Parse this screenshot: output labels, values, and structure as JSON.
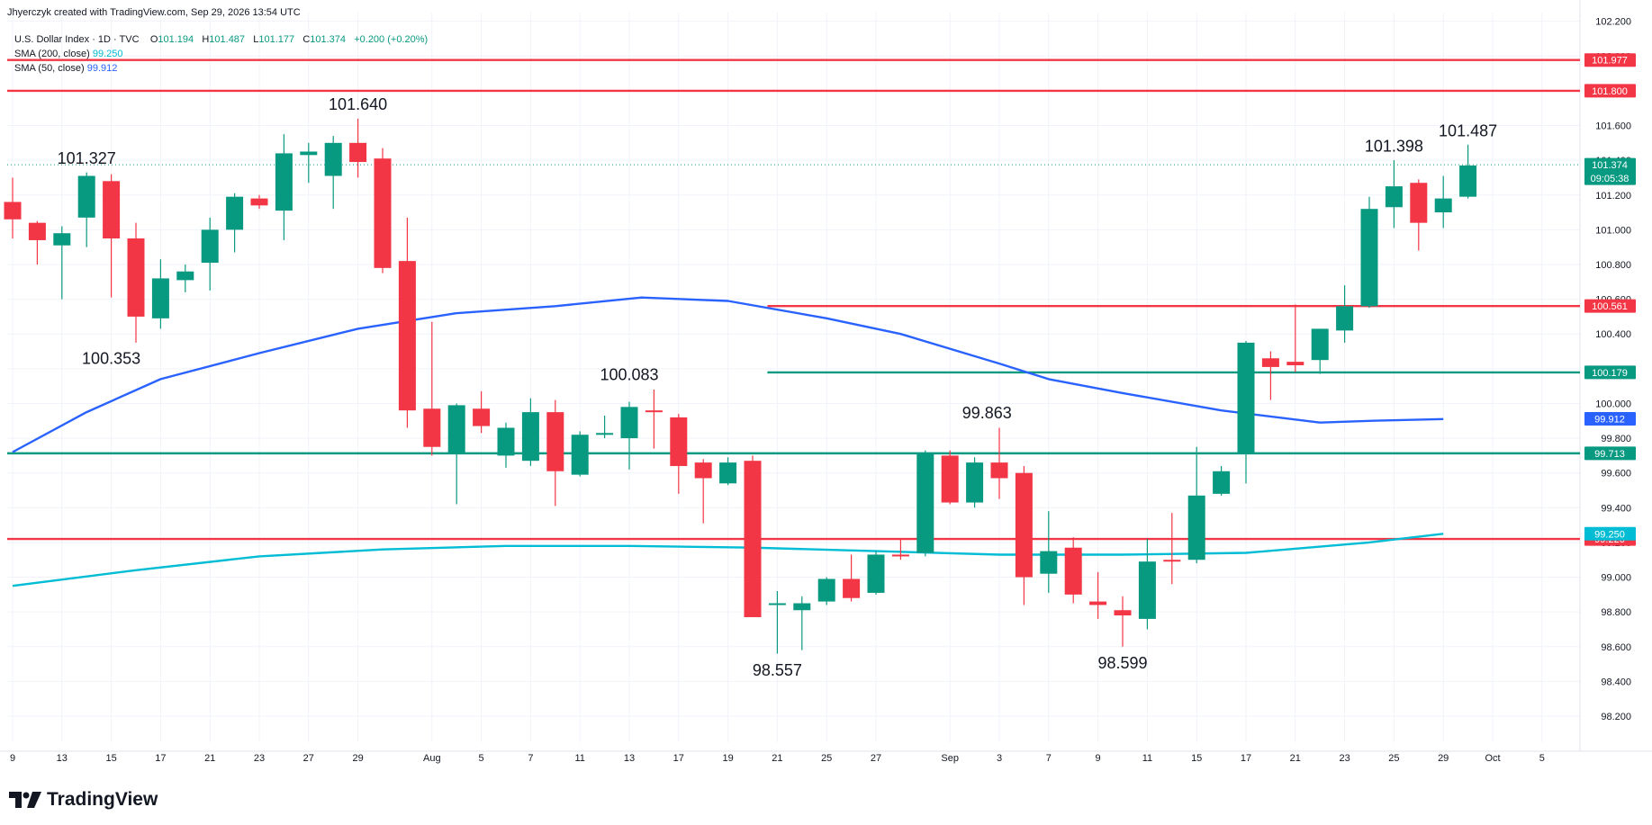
{
  "header": {
    "credit": "Jhyerczyk created with TradingView.com, Sep 29, 2026 13:54 UTC"
  },
  "legend": {
    "symbol": "U.S. Dollar Index · 1D · TVC",
    "open_label": "O",
    "open": "101.194",
    "high_label": "H",
    "high": "101.487",
    "low_label": "L",
    "low": "101.177",
    "close_label": "C",
    "close": "101.374",
    "change": "+0.200 (+0.20%)",
    "sma200_label": "SMA (200, close)",
    "sma200_value": "99.250",
    "sma50_label": "SMA (50, close)",
    "sma50_value": "99.912"
  },
  "brand": {
    "name": "TradingView"
  },
  "colors": {
    "up": "#089981",
    "down": "#f23645",
    "sma50": "#2962ff",
    "sma200": "#00bcd4",
    "red_level": "#f23645",
    "green_level": "#089981",
    "grid": "#f0f3fa",
    "axis_text": "#131722"
  },
  "chart_data": {
    "type": "candlestick",
    "ylim": [
      98.05,
      102.25
    ],
    "y_ticks": [
      "98.200",
      "98.400",
      "98.600",
      "98.800",
      "99.000",
      "99.200",
      "99.400",
      "99.600",
      "99.800",
      "100.000",
      "100.200",
      "100.400",
      "100.600",
      "100.800",
      "101.000",
      "101.200",
      "101.400",
      "101.600",
      "101.800",
      "102.000",
      "102.200"
    ],
    "x_ticks": [
      {
        "i": 0,
        "label": "9"
      },
      {
        "i": 2,
        "label": "13"
      },
      {
        "i": 4,
        "label": "15"
      },
      {
        "i": 6,
        "label": "17"
      },
      {
        "i": 8,
        "label": "21"
      },
      {
        "i": 10,
        "label": "23"
      },
      {
        "i": 12,
        "label": "27"
      },
      {
        "i": 14,
        "label": "29"
      },
      {
        "i": 17,
        "label": "Aug"
      },
      {
        "i": 19,
        "label": "5"
      },
      {
        "i": 21,
        "label": "7"
      },
      {
        "i": 23,
        "label": "11"
      },
      {
        "i": 25,
        "label": "13"
      },
      {
        "i": 27,
        "label": "17"
      },
      {
        "i": 29,
        "label": "19"
      },
      {
        "i": 31,
        "label": "21"
      },
      {
        "i": 33,
        "label": "25"
      },
      {
        "i": 35,
        "label": "27"
      },
      {
        "i": 38,
        "label": "Sep"
      },
      {
        "i": 40,
        "label": "3"
      },
      {
        "i": 42,
        "label": "7"
      },
      {
        "i": 44,
        "label": "9"
      },
      {
        "i": 46,
        "label": "11"
      },
      {
        "i": 48,
        "label": "15"
      },
      {
        "i": 50,
        "label": "17"
      },
      {
        "i": 52,
        "label": "21"
      },
      {
        "i": 54,
        "label": "23"
      },
      {
        "i": 56,
        "label": "25"
      },
      {
        "i": 58,
        "label": "29"
      },
      {
        "i": 60,
        "label": "Oct"
      },
      {
        "i": 62,
        "label": "5"
      }
    ],
    "candles": [
      {
        "o": 101.16,
        "h": 101.3,
        "l": 100.95,
        "c": 101.06
      },
      {
        "o": 101.04,
        "h": 101.05,
        "l": 100.8,
        "c": 100.94
      },
      {
        "o": 100.91,
        "h": 101.02,
        "l": 100.6,
        "c": 100.98
      },
      {
        "o": 101.07,
        "h": 101.33,
        "l": 100.9,
        "c": 101.31
      },
      {
        "o": 101.28,
        "h": 101.32,
        "l": 100.61,
        "c": 100.95
      },
      {
        "o": 100.95,
        "h": 101.04,
        "l": 100.35,
        "c": 100.5
      },
      {
        "o": 100.49,
        "h": 100.83,
        "l": 100.43,
        "c": 100.72
      },
      {
        "o": 100.71,
        "h": 100.8,
        "l": 100.64,
        "c": 100.76
      },
      {
        "o": 100.81,
        "h": 101.07,
        "l": 100.65,
        "c": 101.0
      },
      {
        "o": 101.0,
        "h": 101.21,
        "l": 100.87,
        "c": 101.19
      },
      {
        "o": 101.18,
        "h": 101.2,
        "l": 101.12,
        "c": 101.14
      },
      {
        "o": 101.11,
        "h": 101.55,
        "l": 100.94,
        "c": 101.44
      },
      {
        "o": 101.43,
        "h": 101.5,
        "l": 101.27,
        "c": 101.45
      },
      {
        "o": 101.31,
        "h": 101.54,
        "l": 101.12,
        "c": 101.5
      },
      {
        "o": 101.5,
        "h": 101.64,
        "l": 101.3,
        "c": 101.39
      },
      {
        "o": 101.41,
        "h": 101.47,
        "l": 100.75,
        "c": 100.78
      },
      {
        "o": 100.82,
        "h": 101.07,
        "l": 99.86,
        "c": 99.96
      },
      {
        "o": 99.97,
        "h": 100.47,
        "l": 99.7,
        "c": 99.75
      },
      {
        "o": 99.71,
        "h": 100.0,
        "l": 99.42,
        "c": 99.99
      },
      {
        "o": 99.97,
        "h": 100.07,
        "l": 99.83,
        "c": 99.87
      },
      {
        "o": 99.7,
        "h": 99.89,
        "l": 99.63,
        "c": 99.86
      },
      {
        "o": 99.67,
        "h": 100.03,
        "l": 99.64,
        "c": 99.95
      },
      {
        "o": 99.95,
        "h": 100.02,
        "l": 99.41,
        "c": 99.61
      },
      {
        "o": 99.59,
        "h": 99.84,
        "l": 99.58,
        "c": 99.82
      },
      {
        "o": 99.82,
        "h": 99.93,
        "l": 99.8,
        "c": 99.83
      },
      {
        "o": 99.8,
        "h": 100.01,
        "l": 99.62,
        "c": 99.98
      },
      {
        "o": 99.96,
        "h": 100.08,
        "l": 99.74,
        "c": 99.95
      },
      {
        "o": 99.92,
        "h": 99.94,
        "l": 99.48,
        "c": 99.64
      },
      {
        "o": 99.66,
        "h": 99.68,
        "l": 99.31,
        "c": 99.57
      },
      {
        "o": 99.54,
        "h": 99.69,
        "l": 99.53,
        "c": 99.66
      },
      {
        "o": 99.67,
        "h": 99.7,
        "l": 98.77,
        "c": 98.77
      },
      {
        "o": 98.84,
        "h": 98.92,
        "l": 98.56,
        "c": 98.85
      },
      {
        "o": 98.81,
        "h": 98.89,
        "l": 98.58,
        "c": 98.85
      },
      {
        "o": 98.86,
        "h": 99.0,
        "l": 98.84,
        "c": 98.99
      },
      {
        "o": 98.99,
        "h": 99.13,
        "l": 98.86,
        "c": 98.88
      },
      {
        "o": 98.91,
        "h": 99.15,
        "l": 98.9,
        "c": 99.13
      },
      {
        "o": 99.13,
        "h": 99.22,
        "l": 99.1,
        "c": 99.12
      },
      {
        "o": 99.14,
        "h": 99.73,
        "l": 99.12,
        "c": 99.71
      },
      {
        "o": 99.7,
        "h": 99.73,
        "l": 99.42,
        "c": 99.43
      },
      {
        "o": 99.43,
        "h": 99.69,
        "l": 99.4,
        "c": 99.66
      },
      {
        "o": 99.66,
        "h": 99.86,
        "l": 99.45,
        "c": 99.57
      },
      {
        "o": 99.6,
        "h": 99.64,
        "l": 98.84,
        "c": 99.0
      },
      {
        "o": 99.02,
        "h": 99.38,
        "l": 98.91,
        "c": 99.15
      },
      {
        "o": 99.17,
        "h": 99.23,
        "l": 98.85,
        "c": 98.9
      },
      {
        "o": 98.86,
        "h": 99.03,
        "l": 98.76,
        "c": 98.84
      },
      {
        "o": 98.81,
        "h": 98.89,
        "l": 98.6,
        "c": 98.78
      },
      {
        "o": 98.76,
        "h": 99.22,
        "l": 98.7,
        "c": 99.09
      },
      {
        "o": 99.1,
        "h": 99.37,
        "l": 98.96,
        "c": 99.09
      },
      {
        "o": 99.1,
        "h": 99.75,
        "l": 99.08,
        "c": 99.47
      },
      {
        "o": 99.48,
        "h": 99.64,
        "l": 99.47,
        "c": 99.61
      },
      {
        "o": 99.71,
        "h": 100.36,
        "l": 99.54,
        "c": 100.35
      },
      {
        "o": 100.26,
        "h": 100.3,
        "l": 100.02,
        "c": 100.21
      },
      {
        "o": 100.24,
        "h": 100.57,
        "l": 100.18,
        "c": 100.22
      },
      {
        "o": 100.25,
        "h": 100.43,
        "l": 100.17,
        "c": 100.43
      },
      {
        "o": 100.42,
        "h": 100.68,
        "l": 100.35,
        "c": 100.56
      },
      {
        "o": 100.56,
        "h": 101.19,
        "l": 100.55,
        "c": 101.12
      },
      {
        "o": 101.13,
        "h": 101.4,
        "l": 101.01,
        "c": 101.25
      },
      {
        "o": 101.27,
        "h": 101.29,
        "l": 100.88,
        "c": 101.04
      },
      {
        "o": 101.1,
        "h": 101.31,
        "l": 101.01,
        "c": 101.18
      },
      {
        "o": 101.19,
        "h": 101.49,
        "l": 101.18,
        "c": 101.37
      }
    ],
    "sma50": [
      {
        "i": 0,
        "v": 99.72
      },
      {
        "i": 3,
        "v": 99.95
      },
      {
        "i": 6,
        "v": 100.14
      },
      {
        "i": 10,
        "v": 100.29
      },
      {
        "i": 14,
        "v": 100.43
      },
      {
        "i": 18,
        "v": 100.52
      },
      {
        "i": 22,
        "v": 100.56
      },
      {
        "i": 25.5,
        "v": 100.61
      },
      {
        "i": 29,
        "v": 100.59
      },
      {
        "i": 33,
        "v": 100.49
      },
      {
        "i": 36,
        "v": 100.4
      },
      {
        "i": 40,
        "v": 100.23
      },
      {
        "i": 42,
        "v": 100.14
      },
      {
        "i": 45,
        "v": 100.06
      },
      {
        "i": 49,
        "v": 99.96
      },
      {
        "i": 53,
        "v": 99.89
      },
      {
        "i": 55,
        "v": 99.9
      },
      {
        "i": 58,
        "v": 99.91
      }
    ],
    "sma200": [
      {
        "i": 0,
        "v": 98.95
      },
      {
        "i": 5,
        "v": 99.04
      },
      {
        "i": 10,
        "v": 99.12
      },
      {
        "i": 15,
        "v": 99.16
      },
      {
        "i": 20,
        "v": 99.18
      },
      {
        "i": 25,
        "v": 99.18
      },
      {
        "i": 30,
        "v": 99.17
      },
      {
        "i": 35,
        "v": 99.15
      },
      {
        "i": 40,
        "v": 99.13
      },
      {
        "i": 45,
        "v": 99.13
      },
      {
        "i": 50,
        "v": 99.14
      },
      {
        "i": 55,
        "v": 99.2
      },
      {
        "i": 58,
        "v": 99.25
      }
    ],
    "levels": [
      {
        "value": 101.977,
        "label": "101.977",
        "color": "red",
        "from_i": 0
      },
      {
        "value": 101.8,
        "label": "101.800",
        "color": "red",
        "from_i": 0
      },
      {
        "value": 100.561,
        "label": "100.561",
        "color": "red",
        "from_i": 30.6
      },
      {
        "value": 100.179,
        "label": "100.179",
        "color": "green",
        "from_i": 30.6
      },
      {
        "value": 99.713,
        "label": "99.713",
        "color": "green",
        "from_i": 0
      },
      {
        "value": 99.22,
        "label": "99.220",
        "color": "red",
        "from_i": 0
      }
    ],
    "axis_badges": [
      {
        "value": 99.912,
        "label": "99.912",
        "color": "sma50"
      },
      {
        "value": 99.25,
        "label": "99.250",
        "color": "sma200"
      }
    ],
    "last_price": {
      "value": 101.374,
      "label": "101.374",
      "countdown": "09:05:38"
    },
    "annotations": [
      {
        "i": 3,
        "v": 101.327,
        "label": "101.327",
        "pos": "above"
      },
      {
        "i": 4,
        "v": 100.353,
        "label": "100.353",
        "pos": "below"
      },
      {
        "i": 14,
        "v": 101.64,
        "label": "101.640",
        "pos": "above"
      },
      {
        "i": 25,
        "v": 100.083,
        "label": "100.083",
        "pos": "above"
      },
      {
        "i": 31,
        "v": 98.557,
        "label": "98.557",
        "pos": "below"
      },
      {
        "i": 39.5,
        "v": 99.863,
        "label": "99.863",
        "pos": "above"
      },
      {
        "i": 45,
        "v": 98.599,
        "label": "98.599",
        "pos": "below"
      },
      {
        "i": 56,
        "v": 101.398,
        "label": "101.398",
        "pos": "above"
      },
      {
        "i": 59,
        "v": 101.487,
        "label": "101.487",
        "pos": "above"
      }
    ]
  }
}
